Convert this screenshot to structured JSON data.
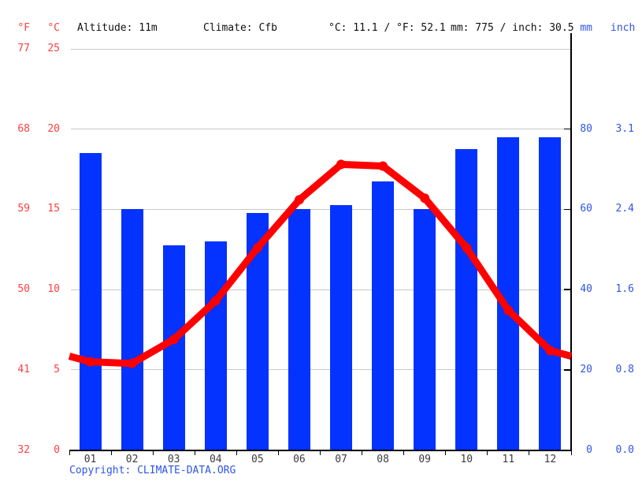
{
  "header": {
    "f_unit": "°F",
    "c_unit": "°C",
    "altitude": "Altitude: 11m",
    "climate": "Climate: Cfb",
    "temp_summary": "°C: 11.1 / °F: 52.1",
    "precip_summary": "mm: 775 / inch: 30.5",
    "mm_unit": "mm",
    "inch_unit": "inch"
  },
  "footer": {
    "copyright": "Copyright: CLIMATE-DATA.ORG"
  },
  "colors": {
    "bar_blue": "#0432ff",
    "line_red": "#ff0000",
    "red_text": "#fb4141",
    "blue_text": "#2f55e5",
    "black_text": "#101010",
    "month_text": "#3c3c3c",
    "gridline": "#c9c9c9",
    "axis_black": "#000000"
  },
  "chart_data": {
    "type": "bar",
    "subtype": "climograph: monthly precipitation bars + mean temperature line",
    "categories": [
      "01",
      "02",
      "03",
      "04",
      "05",
      "06",
      "07",
      "08",
      "09",
      "10",
      "11",
      "12"
    ],
    "series": [
      {
        "name": "Precipitation (mm)",
        "type": "bar",
        "values": [
          74,
          60,
          51,
          52,
          59,
          60,
          61,
          67,
          60,
          75,
          78,
          78
        ]
      },
      {
        "name": "Average temperature (°C)",
        "type": "line",
        "values": [
          5.5,
          5.4,
          6.9,
          9.3,
          12.6,
          15.6,
          17.8,
          17.7,
          15.7,
          12.6,
          8.7,
          6.2
        ]
      }
    ],
    "left_axis": {
      "f_ticks": [
        77,
        68,
        59,
        50,
        41,
        32
      ],
      "c_ticks": [
        25,
        20,
        15,
        10,
        5,
        0
      ]
    },
    "right_axis": {
      "mm_ticks": [
        80,
        60,
        40,
        20,
        0
      ],
      "inch_ticks": [
        "3.1",
        "2.4",
        "1.6",
        "0.8",
        "0.0"
      ]
    },
    "ylim_temp_c": [
      0,
      25
    ],
    "ylim_precip_mm": [
      0,
      100
    ],
    "grid": "horizontal",
    "legend": "none"
  }
}
